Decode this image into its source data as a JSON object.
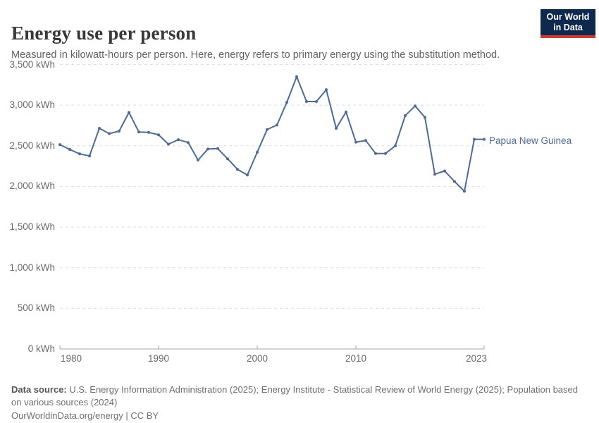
{
  "header": {
    "title": "Energy use per person",
    "subtitle": "Measured in kilowatt-hours per person. Here, energy refers to primary energy using the substitution method."
  },
  "logo": {
    "line1": "Our World",
    "line2": "in Data",
    "bg_color": "#0d2a4e",
    "accent_color": "#d7382e"
  },
  "chart_data": {
    "type": "line",
    "title": "Energy use per person",
    "unit": "kWh",
    "grid": "horizontal-dashed",
    "legend_position": "right-of-line-end",
    "ylim": [
      0,
      3500
    ],
    "ytick_step": 500,
    "ytick_labels": [
      "0 kWh",
      "500 kWh",
      "1,000 kWh",
      "1,500 kWh",
      "2,000 kWh",
      "2,500 kWh",
      "3,000 kWh",
      "3,500 kWh"
    ],
    "xticks": [
      1980,
      1990,
      2000,
      2010,
      2023
    ],
    "xtick_labels": [
      "1980",
      "1990",
      "2000",
      "2010",
      "2023"
    ],
    "x": [
      1980,
      1981,
      1982,
      1983,
      1984,
      1985,
      1986,
      1987,
      1988,
      1989,
      1990,
      1991,
      1992,
      1993,
      1994,
      1995,
      1996,
      1997,
      1998,
      1999,
      2000,
      2001,
      2002,
      2003,
      2004,
      2005,
      2006,
      2007,
      2008,
      2009,
      2010,
      2011,
      2012,
      2013,
      2014,
      2015,
      2016,
      2017,
      2018,
      2019,
      2020,
      2021,
      2022,
      2023
    ],
    "series": [
      {
        "name": "Papua New Guinea",
        "color": "#4C6A9C",
        "values": [
          2515,
          2455,
          2400,
          2375,
          2715,
          2650,
          2680,
          2910,
          2670,
          2665,
          2635,
          2520,
          2575,
          2540,
          2325,
          2460,
          2465,
          2340,
          2210,
          2140,
          2420,
          2700,
          2755,
          3035,
          3350,
          3045,
          3045,
          3190,
          2715,
          2915,
          2545,
          2565,
          2405,
          2405,
          2500,
          2870,
          2990,
          2850,
          2150,
          2190,
          2060,
          1940,
          2580,
          2580
        ]
      }
    ]
  },
  "footer": {
    "datasource_label": "Data source:",
    "datasource_text": "U.S. Energy Information Administration (2025); Energy Institute - Statistical Review of World Energy (2025); Population based on various sources (2024)",
    "link": "OurWorldinData.org/energy",
    "separator": " | ",
    "license": "CC BY"
  }
}
